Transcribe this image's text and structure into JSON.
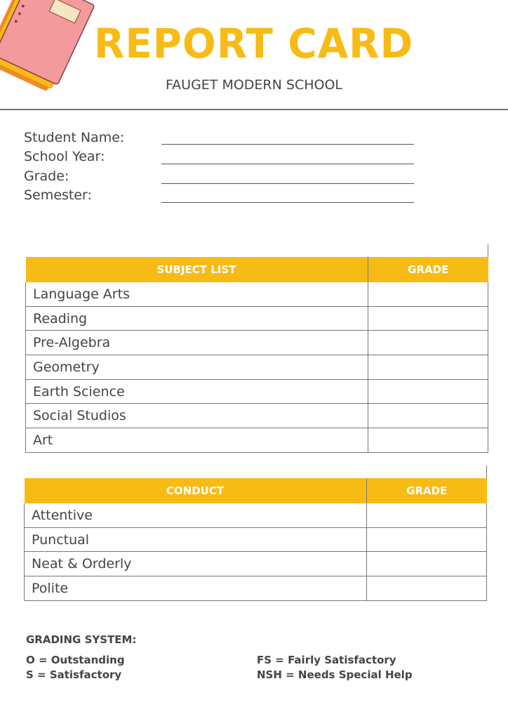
{
  "header": {
    "title": "REPORT CARD",
    "school": "FAUGET MODERN SCHOOL"
  },
  "fields": [
    {
      "label": "Student Name:",
      "value": ""
    },
    {
      "label": "School Year:",
      "value": ""
    },
    {
      "label": "Grade:",
      "value": ""
    },
    {
      "label": "Semester:",
      "value": ""
    }
  ],
  "subjects": {
    "col1": "SUBJECT LIST",
    "col2": "GRADE",
    "rows": [
      "Language Arts",
      "Reading",
      "Pre-Algebra",
      "Geometry",
      "Earth Science",
      "Social Studios",
      "Art"
    ]
  },
  "conduct": {
    "col1": "CONDUCT",
    "col2": "GRADE",
    "rows": [
      "Attentive",
      "Punctual",
      "Neat & Orderly",
      "Polite"
    ]
  },
  "grading": {
    "title": "GRADING SYSTEM:",
    "items": [
      "O = Outstanding",
      "S = Satisfactory",
      "FS = Fairly Satisfactory",
      "NSH = Needs Special Help"
    ]
  },
  "colors": {
    "accent": "#f8bb16",
    "text": "#444444",
    "notebook_pink": "#f39a9c"
  },
  "icons": {
    "decoration": "notebook-illustration"
  }
}
